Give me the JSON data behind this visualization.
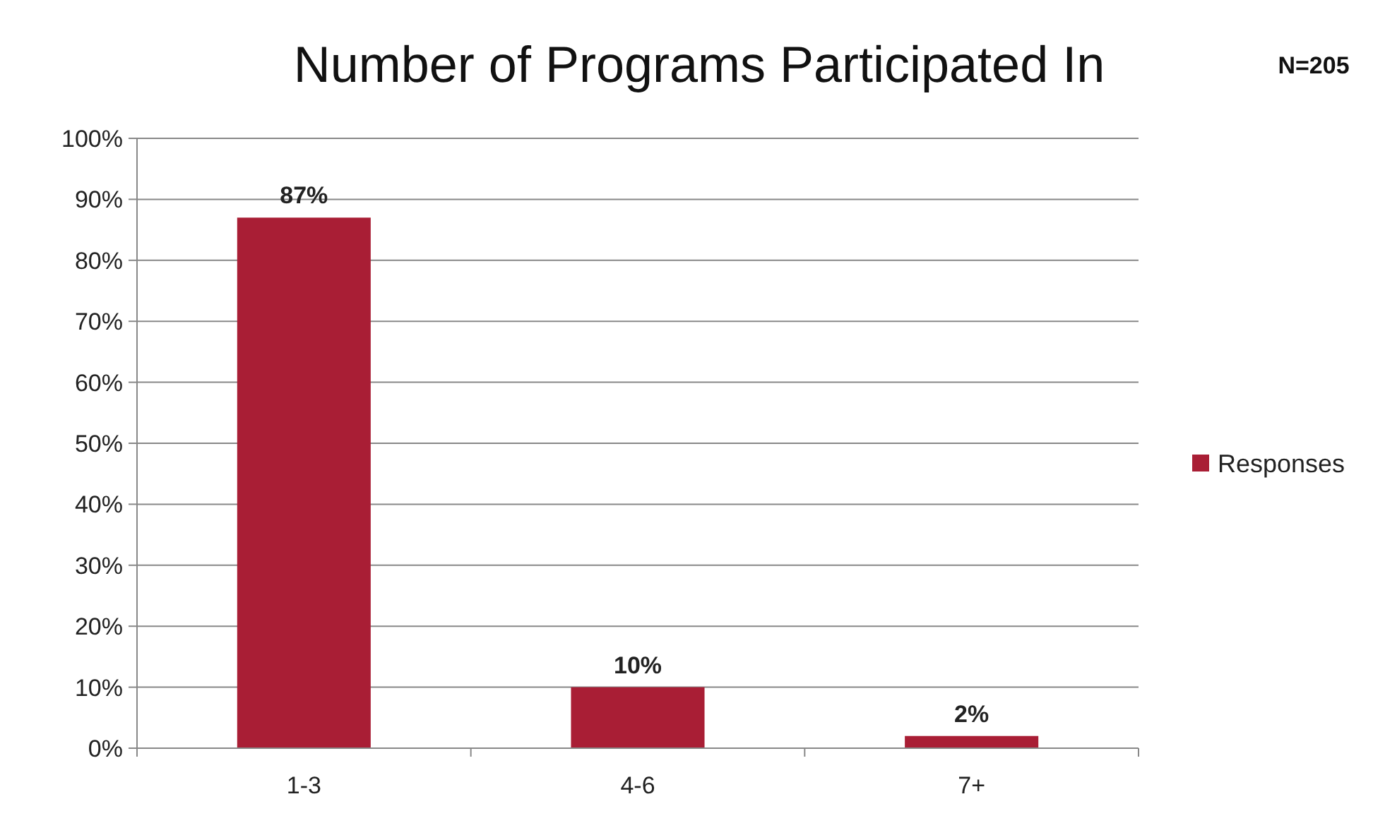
{
  "chart_data": {
    "type": "bar",
    "title": "Number of Programs Participated In",
    "annotations": [
      "N=205"
    ],
    "categories": [
      "1-3",
      "4-6",
      "7+"
    ],
    "series": [
      {
        "name": "Responses",
        "color": "#a91e35",
        "values": [
          87,
          10,
          2
        ]
      }
    ],
    "value_labels": [
      "87%",
      "10%",
      "2%"
    ],
    "ylim": [
      0,
      100
    ],
    "yticks": [
      {
        "value": 0,
        "label": "0%"
      },
      {
        "value": 10,
        "label": "10%"
      },
      {
        "value": 20,
        "label": "20%"
      },
      {
        "value": 30,
        "label": "30%"
      },
      {
        "value": 40,
        "label": "40%"
      },
      {
        "value": 50,
        "label": "50%"
      },
      {
        "value": 60,
        "label": "60%"
      },
      {
        "value": 70,
        "label": "70%"
      },
      {
        "value": 80,
        "label": "80%"
      },
      {
        "value": 90,
        "label": "90%"
      },
      {
        "value": 100,
        "label": "100%"
      }
    ],
    "grid": "y",
    "legend": "right"
  }
}
